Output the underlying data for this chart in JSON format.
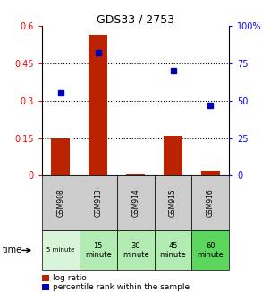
{
  "title": "GDS33 / 2753",
  "samples": [
    "GSM908",
    "GSM913",
    "GSM914",
    "GSM915",
    "GSM916"
  ],
  "time_labels_row1": [
    "5 minute",
    "15",
    "30",
    "45",
    "60"
  ],
  "time_labels_row2": [
    "",
    "minute",
    "minute",
    "minute",
    "minute"
  ],
  "time_bg_colors": [
    "#d9f5d9",
    "#b2ecb2",
    "#b2ecb2",
    "#b2ecb2",
    "#5cd65c"
  ],
  "log_ratio": [
    0.15,
    0.565,
    0.005,
    0.16,
    0.02
  ],
  "percentile_rank": [
    55,
    82,
    null,
    70,
    47
  ],
  "left_ylim": [
    0,
    0.6
  ],
  "right_ylim": [
    0,
    100
  ],
  "left_yticks": [
    0,
    0.15,
    0.3,
    0.45,
    0.6
  ],
  "right_yticks": [
    0,
    25,
    50,
    75,
    100
  ],
  "left_yticklabels": [
    "0",
    "0.15",
    "0.3",
    "0.45",
    "0.6"
  ],
  "right_yticklabels": [
    "0",
    "25",
    "50",
    "75",
    "100%"
  ],
  "bar_color": "#bb2200",
  "dot_color": "#0000bb",
  "sample_bg_color": "#cccccc",
  "legend_bar_label": "log ratio",
  "legend_dot_label": "percentile rank within the sample",
  "time_label_text": "time",
  "bar_width": 0.5
}
